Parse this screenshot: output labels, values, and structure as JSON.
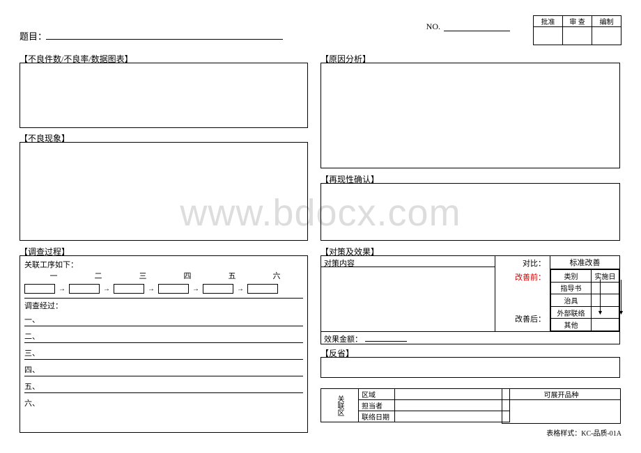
{
  "header": {
    "title_label": "题目：",
    "no_label": "NO.",
    "approval_cols": [
      "批准",
      "审 查",
      "编制"
    ]
  },
  "left": {
    "sec1_title": "【不良件数/不良率/数据图表】",
    "sec2_title": "【不良现象】",
    "sec3_title": "【调查过程】",
    "investigation": {
      "assoc_label": "关联工序如下：",
      "steps": [
        "一",
        "二",
        "三",
        "四",
        "五",
        "六"
      ],
      "history_label": "调查经过：",
      "lines": [
        "一、",
        "二、",
        "三、",
        "四、",
        "五、",
        "六、"
      ]
    }
  },
  "right": {
    "sec1_title": "【原因分析】",
    "sec2_title": "【再现性确认】",
    "sec3_title": "【对策及效果】",
    "sec4_title": "【反省】",
    "cm": {
      "content_label": "对策内容",
      "compare_label": "对比：",
      "before_label": "改善前：",
      "after_label": "改善后：",
      "std_head": "标准改善",
      "std_cols": [
        "类别",
        "实施日"
      ],
      "std_rows": [
        "指导书",
        "治具",
        "外部联络",
        "其他"
      ],
      "effect_label": "效果金额："
    }
  },
  "bottom": {
    "vhead": "关联区",
    "rows": [
      "区域",
      "担当者",
      "联络日期"
    ],
    "expand_label": "可展开品种"
  },
  "form_id": "表格样式：KC-品质-01A",
  "watermark": "www.bdocx.com",
  "colors": {
    "accent_red": "#cc0000",
    "border": "#000000",
    "wm": "#dddddd"
  }
}
